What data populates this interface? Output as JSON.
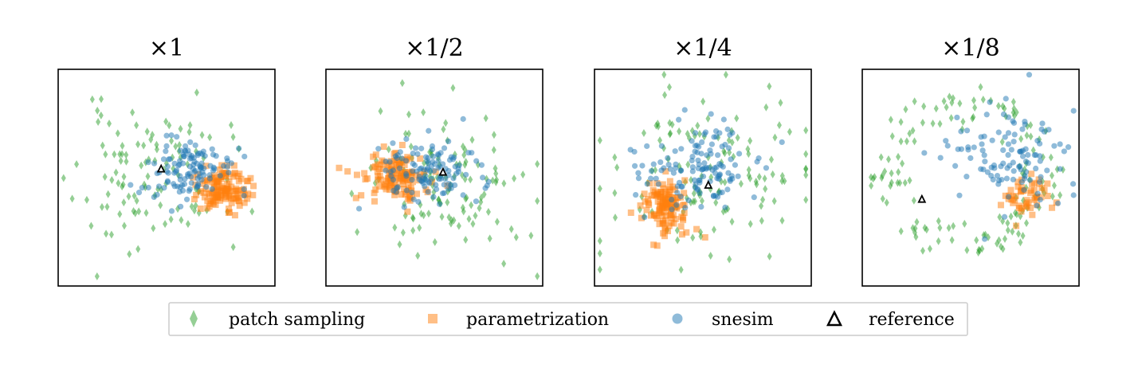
{
  "chart_data": {
    "type": "scatter",
    "axes_visible": false,
    "legend": {
      "placement": "bottom-center",
      "entries": [
        {
          "label": "patch sampling",
          "marker": "diamond",
          "color": "#2ca02c"
        },
        {
          "label": "parametrization",
          "marker": "square",
          "color": "#ff7f0e"
        },
        {
          "label": "snesim",
          "marker": "circle",
          "color": "#1f77b4"
        },
        {
          "label": "reference",
          "marker": "triangle",
          "color": "#000000"
        }
      ]
    },
    "panels": [
      {
        "title": "×1",
        "xlim": [
          -1,
          1
        ],
        "ylim": [
          -1,
          1
        ],
        "reference": [
          -0.05,
          0.08
        ],
        "clusters": {
          "patch": {
            "cx": -0.15,
            "cy": 0.0,
            "sx": 0.35,
            "sy": 0.32,
            "n": 110,
            "seed": 11
          },
          "param": {
            "cx": 0.52,
            "cy": -0.1,
            "sx": 0.12,
            "sy": 0.09,
            "n": 130,
            "seed": 12
          },
          "snesim": {
            "cx": 0.15,
            "cy": 0.08,
            "sx": 0.22,
            "sy": 0.14,
            "n": 120,
            "seed": 13
          }
        }
      },
      {
        "title": "×1/2",
        "xlim": [
          -1,
          1
        ],
        "ylim": [
          -1,
          1
        ],
        "reference": [
          0.08,
          0.05
        ],
        "clusters": {
          "patch": {
            "cx": 0.1,
            "cy": -0.05,
            "sx": 0.38,
            "sy": 0.35,
            "n": 120,
            "seed": 21
          },
          "param": {
            "cx": -0.38,
            "cy": 0.02,
            "sx": 0.16,
            "sy": 0.1,
            "n": 130,
            "seed": 22
          },
          "snesim": {
            "cx": -0.05,
            "cy": 0.05,
            "sx": 0.25,
            "sy": 0.15,
            "n": 120,
            "seed": 23
          }
        }
      },
      {
        "title": "×1/4",
        "xlim": [
          -1,
          1
        ],
        "ylim": [
          -1,
          1
        ],
        "reference": [
          0.05,
          -0.07
        ],
        "clusters": {
          "patch": {
            "cx": 0.05,
            "cy": 0.05,
            "sx": 0.48,
            "sy": 0.38,
            "n": 130,
            "seed": 31
          },
          "param": {
            "cx": -0.35,
            "cy": -0.25,
            "sx": 0.1,
            "sy": 0.13,
            "n": 120,
            "seed": 32
          },
          "snesim": {
            "cx": -0.05,
            "cy": 0.1,
            "sx": 0.28,
            "sy": 0.2,
            "n": 130,
            "seed": 33
          }
        }
      },
      {
        "title": "×1/8",
        "xlim": [
          -1,
          1
        ],
        "ylim": [
          -1,
          1
        ],
        "reference": [
          -0.45,
          -0.2
        ],
        "clusters": {
          "patch": {
            "cx": -0.05,
            "cy": 0.05,
            "sx": 0.55,
            "sy": 0.5,
            "n": 140,
            "seed": 41,
            "ring": true
          },
          "param": {
            "cx": 0.5,
            "cy": -0.15,
            "sx": 0.12,
            "sy": 0.09,
            "n": 50,
            "seed": 42
          },
          "snesim": {
            "cx": 0.35,
            "cy": 0.15,
            "sx": 0.3,
            "sy": 0.25,
            "n": 110,
            "seed": 43
          }
        }
      }
    ]
  }
}
